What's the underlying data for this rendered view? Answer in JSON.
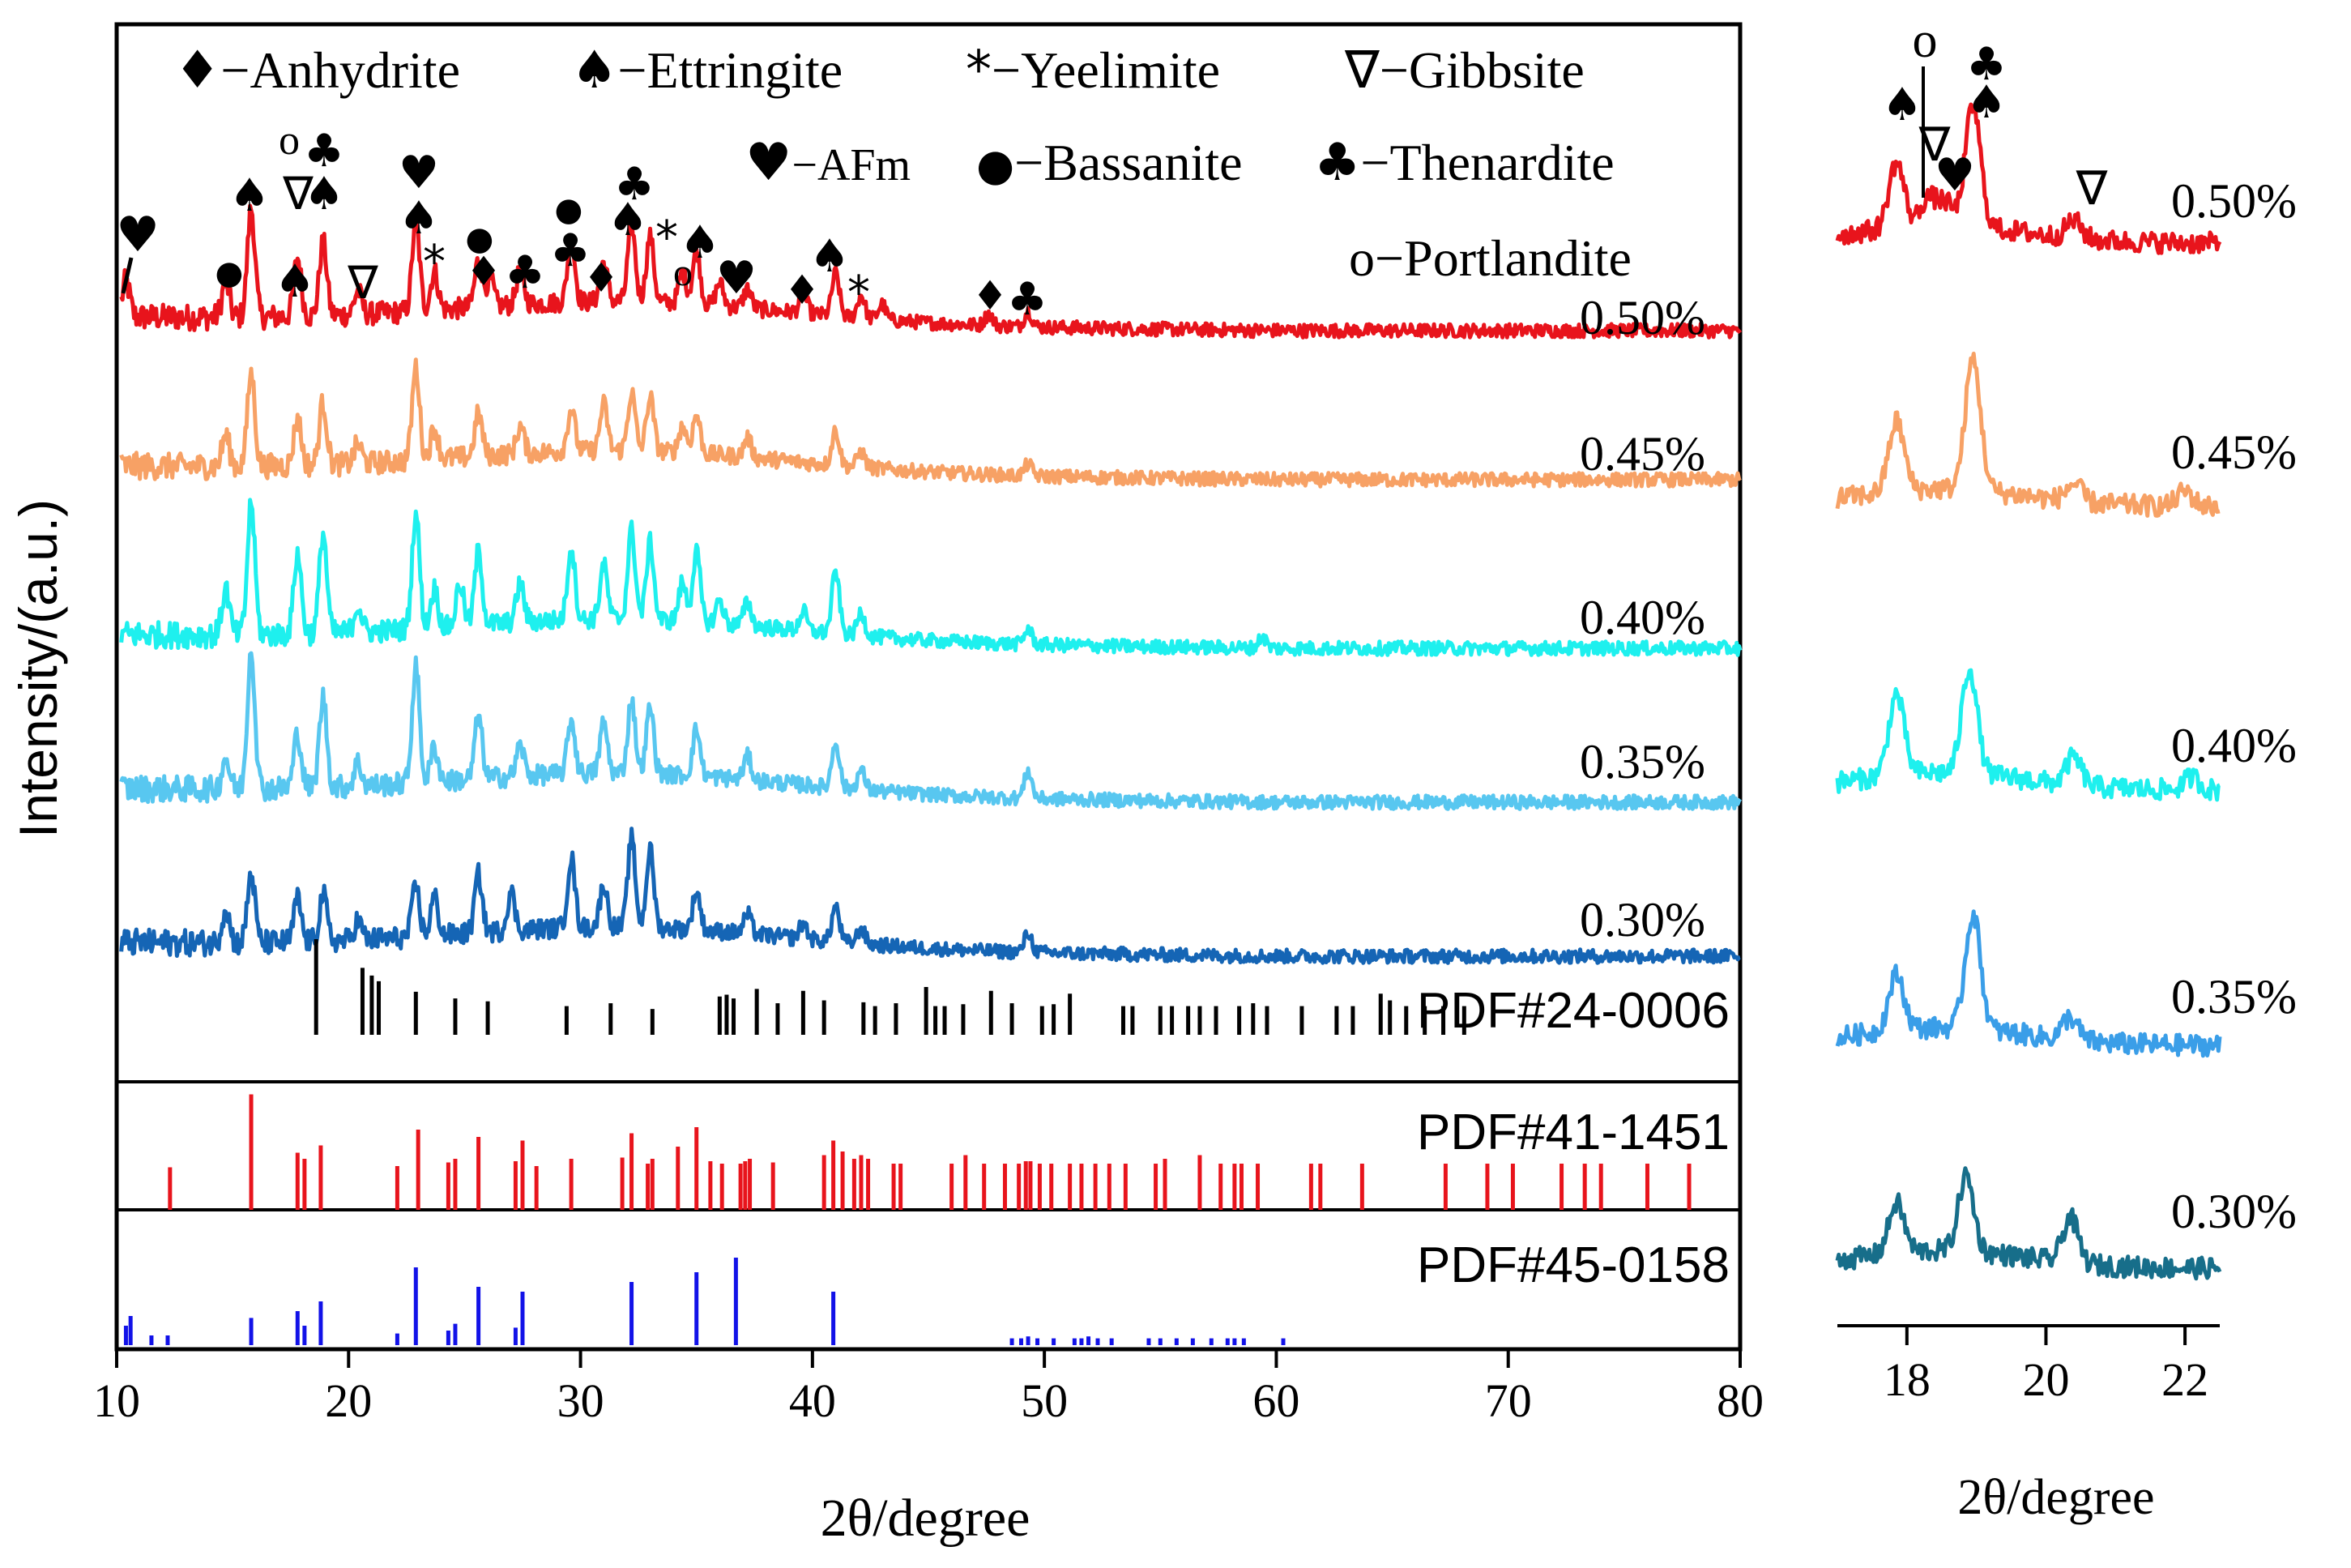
{
  "chart_data": [
    {
      "type": "line",
      "panel": "main",
      "xlabel": "2θ/degree",
      "ylabel": "Intensity/(a.u.)",
      "xlim": [
        10,
        80
      ],
      "xticks": [
        10,
        20,
        30,
        40,
        50,
        60,
        70,
        80
      ],
      "series": [
        {
          "name": "0.50%",
          "color": "#e8141c",
          "peaks": [
            [
              10.4,
              0.9
            ],
            [
              14.7,
              0.9
            ],
            [
              15.8,
              2.8
            ],
            [
              17.8,
              1.5
            ],
            [
              18.9,
              1.9
            ],
            [
              20.4,
              0.6
            ],
            [
              22.9,
              2.3
            ],
            [
              23.7,
              1.0
            ],
            [
              25.6,
              1.2
            ],
            [
              26.1,
              0.7
            ],
            [
              27.4,
              0.9
            ],
            [
              29.6,
              1.6
            ],
            [
              31.0,
              1.0
            ],
            [
              32.2,
              2.0
            ],
            [
              33.0,
              1.7
            ],
            [
              34.4,
              0.8
            ],
            [
              35.0,
              1.4
            ],
            [
              36.0,
              0.6
            ],
            [
              37.2,
              0.5
            ],
            [
              39.6,
              0.5
            ],
            [
              41.0,
              1.1
            ],
            [
              42.1,
              0.6
            ],
            [
              43.0,
              0.4
            ],
            [
              47.6,
              0.3
            ],
            [
              49.3,
              0.4
            ]
          ]
        },
        {
          "name": "0.45%",
          "color": "#f7a165",
          "peaks": [
            [
              14.7,
              0.8
            ],
            [
              15.8,
              2.4
            ],
            [
              17.8,
              1.2
            ],
            [
              18.9,
              1.6
            ],
            [
              20.4,
              0.5
            ],
            [
              22.9,
              2.4
            ],
            [
              23.7,
              0.8
            ],
            [
              25.6,
              1.1
            ],
            [
              27.4,
              0.7
            ],
            [
              29.6,
              1.1
            ],
            [
              31.0,
              1.2
            ],
            [
              32.2,
              1.5
            ],
            [
              33.0,
              1.4
            ],
            [
              34.4,
              0.7
            ],
            [
              35.0,
              1.0
            ],
            [
              37.2,
              0.5
            ],
            [
              41.0,
              0.9
            ],
            [
              42.1,
              0.4
            ],
            [
              49.3,
              0.3
            ]
          ]
        },
        {
          "name": "0.40%",
          "color": "#1ef0ee",
          "peaks": [
            [
              14.7,
              1.2
            ],
            [
              15.8,
              3.4
            ],
            [
              17.8,
              2.1
            ],
            [
              18.9,
              2.6
            ],
            [
              20.4,
              0.7
            ],
            [
              22.9,
              3.0
            ],
            [
              23.7,
              1.0
            ],
            [
              24.8,
              1.1
            ],
            [
              25.6,
              1.9
            ],
            [
              27.4,
              1.0
            ],
            [
              29.6,
              1.9
            ],
            [
              31.0,
              1.4
            ],
            [
              32.2,
              2.3
            ],
            [
              33.0,
              2.0
            ],
            [
              34.4,
              1.0
            ],
            [
              35.0,
              1.8
            ],
            [
              36.0,
              0.6
            ],
            [
              37.2,
              0.6
            ],
            [
              39.6,
              0.5
            ],
            [
              41.0,
              1.6
            ],
            [
              42.1,
              0.6
            ],
            [
              49.3,
              0.4
            ],
            [
              59.4,
              0.3
            ]
          ]
        },
        {
          "name": "0.35%",
          "color": "#58c7f0",
          "peaks": [
            [
              14.7,
              0.8
            ],
            [
              15.8,
              3.6
            ],
            [
              17.8,
              1.4
            ],
            [
              18.9,
              2.3
            ],
            [
              20.4,
              0.6
            ],
            [
              22.9,
              3.0
            ],
            [
              23.7,
              0.9
            ],
            [
              25.6,
              1.6
            ],
            [
              27.4,
              0.8
            ],
            [
              29.6,
              1.4
            ],
            [
              31.0,
              1.3
            ],
            [
              32.2,
              1.9
            ],
            [
              33.0,
              1.7
            ],
            [
              35.0,
              1.2
            ],
            [
              37.2,
              0.6
            ],
            [
              41.0,
              1.2
            ],
            [
              42.1,
              0.5
            ],
            [
              49.3,
              0.7
            ]
          ]
        },
        {
          "name": "0.30%",
          "color": "#1565b5",
          "peaks": [
            [
              14.7,
              0.9
            ],
            [
              15.8,
              1.8
            ],
            [
              17.8,
              1.1
            ],
            [
              18.9,
              1.2
            ],
            [
              20.4,
              0.5
            ],
            [
              22.9,
              1.3
            ],
            [
              23.7,
              1.0
            ],
            [
              25.6,
              1.5
            ],
            [
              27.0,
              1.0
            ],
            [
              29.6,
              1.8
            ],
            [
              31.0,
              1.1
            ],
            [
              32.2,
              2.3
            ],
            [
              33.0,
              2.0
            ],
            [
              35.0,
              1.0
            ],
            [
              37.2,
              0.5
            ],
            [
              39.6,
              0.4
            ],
            [
              41.0,
              0.9
            ],
            [
              42.1,
              0.4
            ],
            [
              49.3,
              0.5
            ]
          ]
        }
      ],
      "references": [
        {
          "name": "PDF#24-0006",
          "color": "#000000",
          "x": [
            18.6,
            20.6,
            21.0,
            21.3,
            22.9,
            24.6,
            26.0,
            29.4,
            31.3,
            33.1,
            36.0,
            36.3,
            36.6,
            37.6,
            38.5,
            39.6,
            40.5,
            42.2,
            42.7,
            43.6,
            44.9,
            45.3,
            45.7,
            46.5,
            47.7,
            48.6,
            49.9,
            50.4,
            51.1,
            53.4,
            53.8,
            55.0,
            55.5,
            56.2,
            56.7,
            57.4,
            58.4,
            59.0,
            59.6,
            61.1,
            62.6,
            63.3,
            64.5,
            64.9,
            65.6,
            66.4,
            67.2,
            68.1
          ],
          "h": [
            1.0,
            0.7,
            0.62,
            0.56,
            0.45,
            0.38,
            0.35,
            0.3,
            0.33,
            0.27,
            0.4,
            0.42,
            0.38,
            0.48,
            0.33,
            0.46,
            0.36,
            0.34,
            0.3,
            0.33,
            0.5,
            0.3,
            0.3,
            0.32,
            0.46,
            0.33,
            0.3,
            0.32,
            0.43,
            0.3,
            0.3,
            0.3,
            0.3,
            0.3,
            0.3,
            0.3,
            0.3,
            0.33,
            0.3,
            0.3,
            0.3,
            0.3,
            0.43,
            0.36,
            0.3,
            0.3,
            0.3,
            0.3
          ]
        },
        {
          "name": "PDF#41-1451",
          "color": "#e8141c",
          "x": [
            12.3,
            15.8,
            17.8,
            18.1,
            18.8,
            22.1,
            23.0,
            24.3,
            24.6,
            25.6,
            27.2,
            27.5,
            28.1,
            29.6,
            31.8,
            32.2,
            32.9,
            33.1,
            34.2,
            35.0,
            35.6,
            36.1,
            36.9,
            37.1,
            37.3,
            38.3,
            40.5,
            40.9,
            41.3,
            41.8,
            42.1,
            42.4,
            43.5,
            43.8,
            46.0,
            46.6,
            47.4,
            48.3,
            48.9,
            49.2,
            49.4,
            49.8,
            50.3,
            51.1,
            51.6,
            52.2,
            52.8,
            53.5,
            54.8,
            55.2,
            56.7,
            57.6,
            58.2,
            58.5,
            59.2,
            61.5,
            61.9,
            63.7,
            67.3,
            69.1,
            70.2,
            72.3,
            73.3,
            74.0,
            76.0,
            77.8
          ],
          "h": [
            0.35,
            0.95,
            0.47,
            0.42,
            0.53,
            0.36,
            0.66,
            0.39,
            0.42,
            0.6,
            0.4,
            0.57,
            0.36,
            0.42,
            0.43,
            0.63,
            0.38,
            0.42,
            0.52,
            0.68,
            0.4,
            0.38,
            0.38,
            0.4,
            0.42,
            0.39,
            0.45,
            0.57,
            0.48,
            0.42,
            0.45,
            0.42,
            0.38,
            0.38,
            0.38,
            0.45,
            0.38,
            0.38,
            0.38,
            0.4,
            0.4,
            0.38,
            0.38,
            0.38,
            0.38,
            0.38,
            0.38,
            0.38,
            0.38,
            0.42,
            0.45,
            0.38,
            0.38,
            0.38,
            0.38,
            0.38,
            0.38,
            0.38,
            0.38,
            0.38,
            0.38,
            0.38,
            0.38,
            0.38,
            0.38,
            0.38
          ]
        },
        {
          "name": "PDF#45-0158",
          "color": "#1212e8",
          "x": [
            10.4,
            10.6,
            11.5,
            12.2,
            15.8,
            17.8,
            18.1,
            18.8,
            22.1,
            22.9,
            24.3,
            24.6,
            25.6,
            27.2,
            27.5,
            32.2,
            35.0,
            36.7,
            40.9,
            48.6,
            49.0,
            49.3,
            49.7,
            50.4,
            51.3,
            51.6,
            51.9,
            52.3,
            52.9,
            54.5,
            55.0,
            55.7,
            56.4,
            57.2,
            57.9,
            58.2,
            58.6,
            60.3
          ],
          "h": [
            0.2,
            0.3,
            0.1,
            0.1,
            0.28,
            0.35,
            0.2,
            0.45,
            0.12,
            0.8,
            0.15,
            0.22,
            0.6,
            0.18,
            0.55,
            0.65,
            0.75,
            0.9,
            0.55,
            0.07,
            0.07,
            0.09,
            0.07,
            0.07,
            0.07,
            0.07,
            0.09,
            0.07,
            0.07,
            0.07,
            0.07,
            0.07,
            0.07,
            0.07,
            0.07,
            0.07,
            0.07,
            0.07
          ]
        }
      ]
    },
    {
      "type": "line",
      "panel": "inset",
      "xlabel": "2θ/degree",
      "xlim": [
        17,
        22.5
      ],
      "xticks": [
        18,
        20,
        22
      ],
      "series": [
        {
          "name": "0.50%",
          "color": "#e8141c",
          "peaks": [
            [
              17.85,
              1.3
            ],
            [
              18.3,
              0.55
            ],
            [
              18.55,
              0.45
            ],
            [
              18.95,
              2.4
            ],
            [
              20.4,
              0.35
            ]
          ]
        },
        {
          "name": "0.45%",
          "color": "#f7a165",
          "peaks": [
            [
              17.85,
              1.4
            ],
            [
              18.95,
              2.6
            ],
            [
              20.4,
              0.35
            ],
            [
              22.0,
              0.3
            ]
          ]
        },
        {
          "name": "0.40%",
          "color": "#1ef0ee",
          "peaks": [
            [
              17.85,
              1.6
            ],
            [
              18.9,
              2.1
            ],
            [
              20.4,
              0.55
            ],
            [
              22.1,
              0.25
            ]
          ]
        },
        {
          "name": "0.35%",
          "color": "#3a9ee8",
          "peaks": [
            [
              17.85,
              1.1
            ],
            [
              18.95,
              2.3
            ],
            [
              20.35,
              0.45
            ]
          ]
        },
        {
          "name": "0.30%",
          "color": "#176e8a",
          "peaks": [
            [
              17.85,
              1.0
            ],
            [
              18.85,
              1.5
            ],
            [
              20.35,
              0.9
            ]
          ]
        }
      ]
    }
  ],
  "legend": {
    "anhydrite": {
      "symbol": "♦",
      "text": "−Anhydrite"
    },
    "ettringite": {
      "symbol": "♠",
      "text": "−Ettringite"
    },
    "yeelimite": {
      "symbol": "*",
      "text": "−Yeelimite"
    },
    "gibbsite": {
      "symbol": "∇",
      "text": "−Gibbsite"
    },
    "afm": {
      "symbol": "♥",
      "text": "−AFm"
    },
    "bassanite": {
      "symbol": "●",
      "text": "−Bassanite"
    },
    "thenardite": {
      "symbol": "♣",
      "text": "−Thenardite"
    },
    "portlandite": {
      "symbol": "o",
      "text": "−Portlandite"
    }
  }
}
